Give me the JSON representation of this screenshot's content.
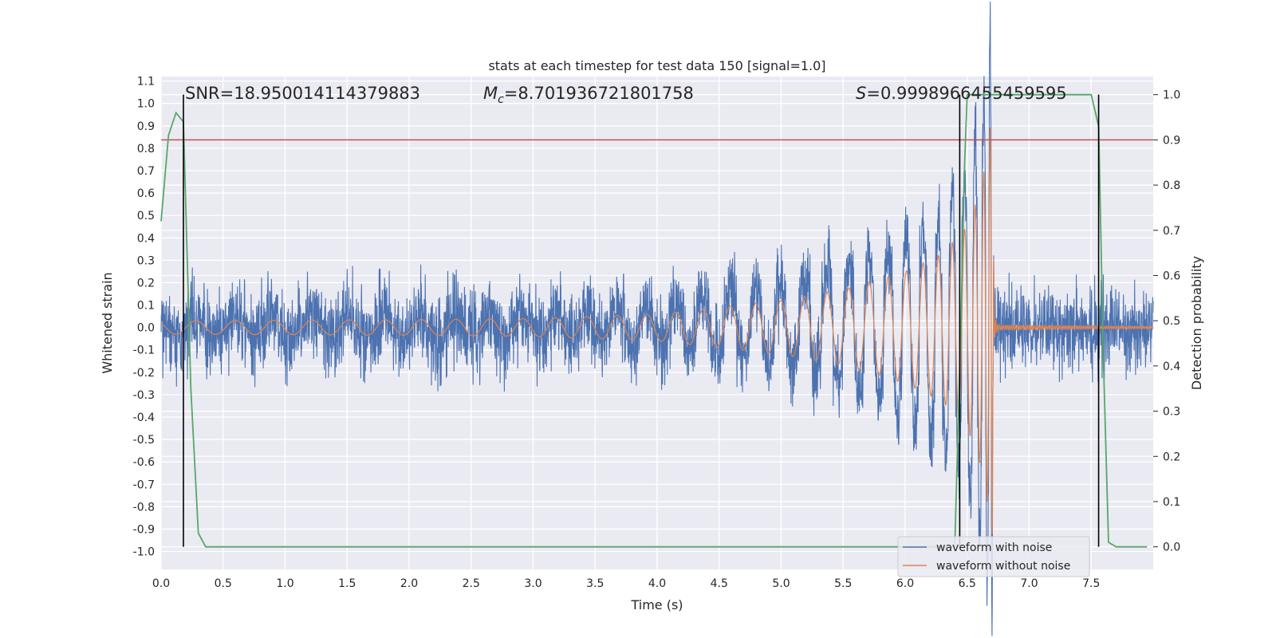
{
  "chart_data": {
    "type": "line",
    "title": "stats at each timestep for test data 150 [signal=1.0]",
    "xlabel": "Time (s)",
    "ylabel": "Whitened strain",
    "y2label": "Detection probability",
    "xlim": [
      0.0,
      8.0
    ],
    "ylim": [
      -1.08,
      1.12
    ],
    "y2lim": [
      -0.05,
      1.04
    ],
    "x_ticks": [
      "0.0",
      "0.5",
      "1.0",
      "1.5",
      "2.0",
      "2.5",
      "3.0",
      "3.5",
      "4.0",
      "4.5",
      "5.0",
      "5.5",
      "6.0",
      "6.5",
      "7.0",
      "7.5"
    ],
    "y_ticks": [
      "1.1",
      "1.0",
      "0.9",
      "0.8",
      "0.7",
      "0.6",
      "0.5",
      "0.4",
      "0.3",
      "0.2",
      "0.1",
      "0.0",
      "-0.1",
      "-0.2",
      "-0.3",
      "-0.4",
      "-0.5",
      "-0.6",
      "-0.7",
      "-0.8",
      "-0.9",
      "-1.0"
    ],
    "y2_ticks": [
      "1.0",
      "0.9",
      "0.8",
      "0.7",
      "0.6",
      "0.5",
      "0.4",
      "0.3",
      "0.2",
      "0.1",
      "0.0"
    ],
    "grid": true,
    "legend_position": "bottom-right",
    "annotations": {
      "snr": "SNR=18.950014114379883",
      "mc_symbol": "M",
      "mc_sub": "c",
      "mc_value": "=8.701936721801758",
      "s_symbol": "S",
      "s_value": "=0.9998966455459595"
    },
    "threshold": {
      "y2": 0.9,
      "color": "#c44e52"
    },
    "vertical_lines": [
      0.18,
      6.44,
      7.56
    ],
    "series": [
      {
        "name": "waveform with noise",
        "color": "#4c72b0",
        "axis": "left",
        "noise_amplitude": 0.2,
        "envelope": [
          [
            0.0,
            0.0
          ],
          [
            3.0,
            0.02
          ],
          [
            4.0,
            0.05
          ],
          [
            5.0,
            0.1
          ],
          [
            5.5,
            0.15
          ],
          [
            6.0,
            0.22
          ],
          [
            6.3,
            0.3
          ],
          [
            6.5,
            0.42
          ],
          [
            6.6,
            0.55
          ],
          [
            6.7,
            0.75
          ],
          [
            6.71,
            0.0
          ],
          [
            8.0,
            0.0
          ]
        ]
      },
      {
        "name": "waveform without noise",
        "color": "#dd8452",
        "axis": "left",
        "t_merger": 6.71,
        "envelope": [
          [
            0.0,
            0.03
          ],
          [
            2.0,
            0.035
          ],
          [
            3.0,
            0.04
          ],
          [
            4.0,
            0.06
          ],
          [
            5.0,
            0.12
          ],
          [
            5.5,
            0.17
          ],
          [
            6.0,
            0.25
          ],
          [
            6.3,
            0.33
          ],
          [
            6.5,
            0.45
          ],
          [
            6.6,
            0.6
          ],
          [
            6.67,
            0.8
          ],
          [
            6.7,
            1.0
          ],
          [
            6.72,
            0.05
          ],
          [
            6.75,
            0.01
          ],
          [
            8.0,
            0.005
          ]
        ]
      },
      {
        "name": "detection probability",
        "color": "#55a868",
        "axis": "right",
        "points": [
          [
            0.0,
            0.72
          ],
          [
            0.06,
            0.91
          ],
          [
            0.12,
            0.96
          ],
          [
            0.18,
            0.94
          ],
          [
            0.24,
            0.35
          ],
          [
            0.3,
            0.03
          ],
          [
            0.36,
            0.0
          ],
          [
            1.0,
            0.0
          ],
          [
            6.0,
            0.0
          ],
          [
            6.4,
            0.0
          ],
          [
            6.45,
            0.5
          ],
          [
            6.48,
            0.85
          ],
          [
            6.5,
            1.0
          ],
          [
            7.5,
            1.0
          ],
          [
            7.56,
            0.93
          ],
          [
            7.6,
            0.4
          ],
          [
            7.64,
            0.01
          ],
          [
            7.7,
            0.0
          ],
          [
            7.95,
            0.0
          ]
        ]
      }
    ]
  }
}
